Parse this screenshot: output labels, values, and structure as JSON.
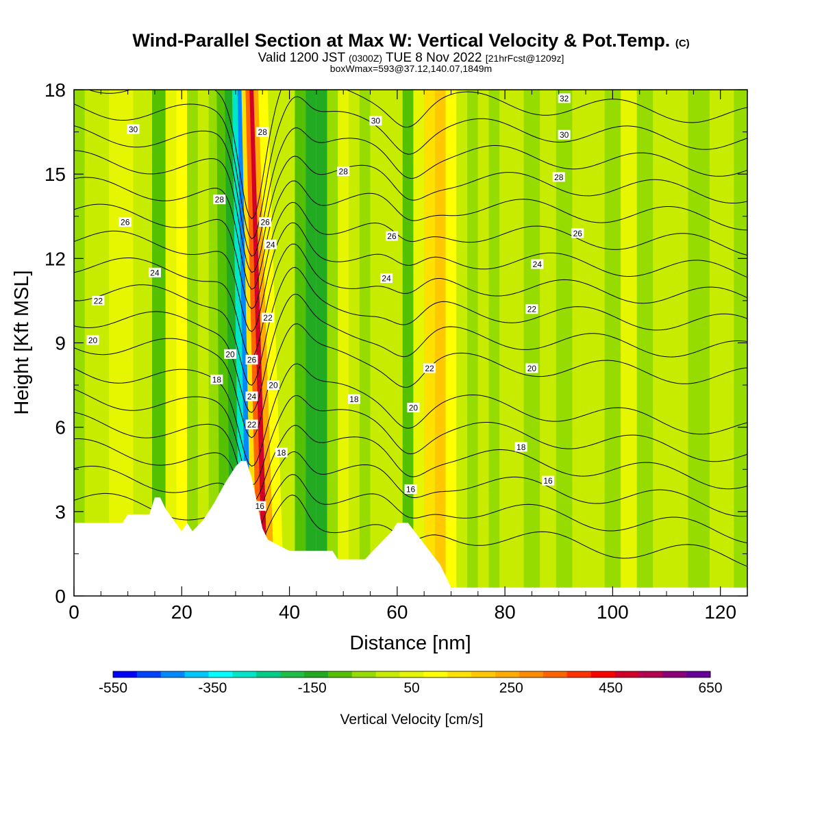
{
  "header": {
    "title": "Wind-Parallel Section at Max W: Vertical Velocity & Pot.Temp.",
    "copyright": "(C)",
    "valid_prefix": "Valid 1200 JST",
    "valid_utc": "(0300Z)",
    "valid_suffix": "TUE 8 Nov 2022",
    "forecast": "[21hrFcst@1209z]",
    "box_info": "boxWmax=593@37.12,140.07,1849m"
  },
  "chart_data": {
    "type": "heatmap",
    "xlabel": "Distance [nm]",
    "ylabel": "Height [Kft MSL]",
    "xlim": [
      0,
      125
    ],
    "ylim": [
      0,
      18
    ],
    "xticks": [
      0,
      20,
      40,
      60,
      80,
      100,
      120
    ],
    "yticks": [
      0,
      3,
      6,
      9,
      12,
      15,
      18
    ],
    "colorbar": {
      "title": "Vertical Velocity [cm/s]",
      "min": -550,
      "max": 650,
      "step": 50,
      "tick_labels": [
        "-550",
        "-350",
        "-150",
        "50",
        "250",
        "450",
        "650"
      ],
      "colors": [
        "#0000ff",
        "#0044ff",
        "#0088ff",
        "#00c8ff",
        "#00ffff",
        "#00e6c8",
        "#00cc88",
        "#1ebf46",
        "#22ab22",
        "#55c000",
        "#96dc00",
        "#c8ec00",
        "#e6f500",
        "#ffff00",
        "#ffe100",
        "#ffc800",
        "#ffab00",
        "#ff8c00",
        "#ff6400",
        "#ff3200",
        "#ff0000",
        "#d20028",
        "#b40050",
        "#8c0078",
        "#640096"
      ]
    },
    "velocity_bands": [
      {
        "x": 0,
        "w": -10
      },
      {
        "x": 4,
        "w": 40
      },
      {
        "x": 9,
        "w": 60
      },
      {
        "x": 13,
        "w": 20
      },
      {
        "x": 16,
        "w": -90
      },
      {
        "x": 18,
        "w": 70
      },
      {
        "x": 20,
        "w": 140
      },
      {
        "x": 22,
        "w": -40
      },
      {
        "x": 24,
        "w": 30
      },
      {
        "x": 26,
        "w": -50
      },
      {
        "x": 28,
        "w": -80
      },
      {
        "x": 30,
        "w": -150
      },
      {
        "x": 31.5,
        "w": -300
      },
      {
        "x": 32.5,
        "w": -450
      },
      {
        "x": 33.5,
        "w": 150
      },
      {
        "x": 34.5,
        "w": 380
      },
      {
        "x": 35.5,
        "w": 500
      },
      {
        "x": 36.5,
        "w": 250
      },
      {
        "x": 38,
        "w": 100
      },
      {
        "x": 40,
        "w": 30
      },
      {
        "x": 42,
        "w": -60
      },
      {
        "x": 44,
        "w": -150
      },
      {
        "x": 46,
        "w": -120
      },
      {
        "x": 48,
        "w": -20
      },
      {
        "x": 50,
        "w": 60
      },
      {
        "x": 52,
        "w": 20
      },
      {
        "x": 54,
        "w": -30
      },
      {
        "x": 56,
        "w": 30
      },
      {
        "x": 58,
        "w": 20
      },
      {
        "x": 60,
        "w": 40
      },
      {
        "x": 62,
        "w": -60
      },
      {
        "x": 64,
        "w": 80
      },
      {
        "x": 66,
        "w": 150
      },
      {
        "x": 68,
        "w": 200
      },
      {
        "x": 70,
        "w": 120
      },
      {
        "x": 72,
        "w": 40
      },
      {
        "x": 74,
        "w": -20
      },
      {
        "x": 76,
        "w": 30
      },
      {
        "x": 78,
        "w": -40
      },
      {
        "x": 80,
        "w": 20
      },
      {
        "x": 82,
        "w": 40
      },
      {
        "x": 85,
        "w": -10
      },
      {
        "x": 88,
        "w": 40
      },
      {
        "x": 91,
        "w": -40
      },
      {
        "x": 94,
        "w": 20
      },
      {
        "x": 97,
        "w": 40
      },
      {
        "x": 100,
        "w": -10
      },
      {
        "x": 103,
        "w": 50
      },
      {
        "x": 106,
        "w": -40
      },
      {
        "x": 109,
        "w": 20
      },
      {
        "x": 112,
        "w": 10
      },
      {
        "x": 116,
        "w": -30
      },
      {
        "x": 120,
        "w": 0
      },
      {
        "x": 125,
        "w": -20
      }
    ],
    "terrain": [
      [
        0,
        2.6
      ],
      [
        9,
        2.6
      ],
      [
        10,
        2.9
      ],
      [
        14,
        2.9
      ],
      [
        15,
        3.5
      ],
      [
        16,
        3.5
      ],
      [
        17,
        3.1
      ],
      [
        20,
        2.3
      ],
      [
        21,
        2.6
      ],
      [
        22,
        2.3
      ],
      [
        24,
        2.7
      ],
      [
        26,
        3.3
      ],
      [
        28,
        4.0
      ],
      [
        30,
        4.6
      ],
      [
        31,
        4.8
      ],
      [
        32,
        4.8
      ],
      [
        33,
        4.2
      ],
      [
        34,
        3.3
      ],
      [
        35,
        2.4
      ],
      [
        36,
        2.0
      ],
      [
        38,
        1.8
      ],
      [
        40,
        1.6
      ],
      [
        48,
        1.6
      ],
      [
        49,
        1.3
      ],
      [
        54,
        1.3
      ],
      [
        55,
        1.5
      ],
      [
        57,
        1.9
      ],
      [
        59,
        2.3
      ],
      [
        60,
        2.6
      ],
      [
        62,
        2.6
      ],
      [
        64,
        2.1
      ],
      [
        66,
        1.6
      ],
      [
        68,
        1.1
      ],
      [
        70,
        0.3
      ],
      [
        125,
        0.3
      ]
    ],
    "theta_contours": [
      16,
      17,
      18,
      19,
      20,
      21,
      22,
      23,
      24,
      25,
      26,
      27,
      28,
      29,
      30,
      31,
      32
    ],
    "contour_labels": [
      {
        "x": 11,
        "y": 16.6,
        "text": "30"
      },
      {
        "x": 9.5,
        "y": 13.3,
        "text": "26"
      },
      {
        "x": 15,
        "y": 11.5,
        "text": "24"
      },
      {
        "x": 4.5,
        "y": 10.5,
        "text": "22"
      },
      {
        "x": 3.5,
        "y": 9.1,
        "text": "20"
      },
      {
        "x": 27,
        "y": 14.1,
        "text": "28"
      },
      {
        "x": 35,
        "y": 16.5,
        "text": "28"
      },
      {
        "x": 35.5,
        "y": 13.3,
        "text": "26"
      },
      {
        "x": 36.5,
        "y": 12.5,
        "text": "24"
      },
      {
        "x": 36,
        "y": 9.9,
        "text": "22"
      },
      {
        "x": 29,
        "y": 8.6,
        "text": "20"
      },
      {
        "x": 33,
        "y": 8.4,
        "text": "26"
      },
      {
        "x": 26.5,
        "y": 7.7,
        "text": "18"
      },
      {
        "x": 37,
        "y": 7.5,
        "text": "20"
      },
      {
        "x": 33,
        "y": 7.1,
        "text": "24"
      },
      {
        "x": 33,
        "y": 6.1,
        "text": "22"
      },
      {
        "x": 38.5,
        "y": 5.1,
        "text": "18"
      },
      {
        "x": 34.5,
        "y": 3.2,
        "text": "16"
      },
      {
        "x": 56,
        "y": 16.9,
        "text": "30"
      },
      {
        "x": 50,
        "y": 15.1,
        "text": "28"
      },
      {
        "x": 59,
        "y": 12.8,
        "text": "26"
      },
      {
        "x": 58,
        "y": 11.3,
        "text": "24"
      },
      {
        "x": 52,
        "y": 7.0,
        "text": "18"
      },
      {
        "x": 66,
        "y": 8.1,
        "text": "22"
      },
      {
        "x": 63,
        "y": 6.7,
        "text": "20"
      },
      {
        "x": 62.5,
        "y": 3.8,
        "text": "16"
      },
      {
        "x": 91,
        "y": 17.7,
        "text": "32"
      },
      {
        "x": 91,
        "y": 16.4,
        "text": "30"
      },
      {
        "x": 90,
        "y": 14.9,
        "text": "28"
      },
      {
        "x": 93.5,
        "y": 12.9,
        "text": "26"
      },
      {
        "x": 86,
        "y": 11.8,
        "text": "24"
      },
      {
        "x": 85,
        "y": 10.2,
        "text": "22"
      },
      {
        "x": 85,
        "y": 8.1,
        "text": "20"
      },
      {
        "x": 83,
        "y": 5.3,
        "text": "18"
      },
      {
        "x": 88,
        "y": 4.1,
        "text": "16"
      }
    ]
  }
}
